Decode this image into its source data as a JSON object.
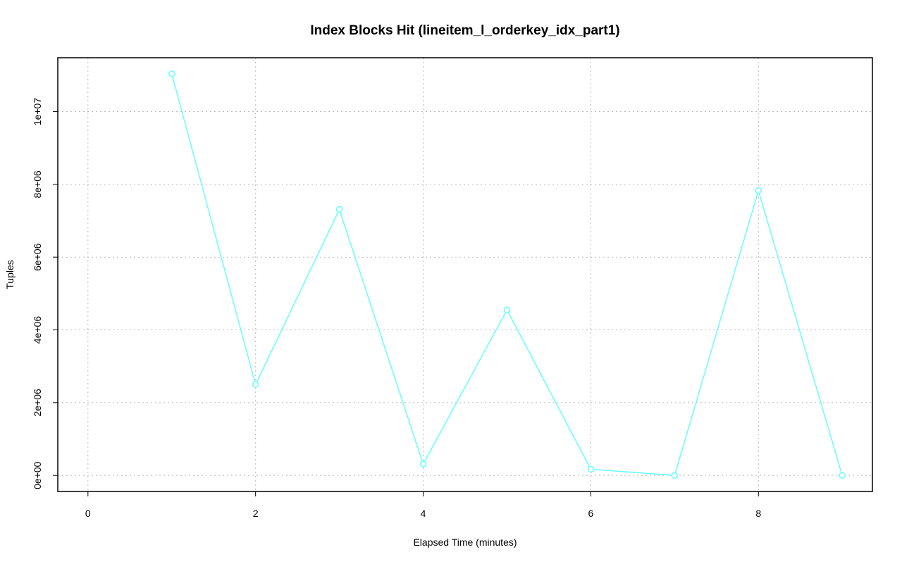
{
  "chart_data": {
    "type": "line",
    "title": "Index Blocks Hit (lineitem_l_orderkey_idx_part1)",
    "x_label": "Elapsed Time (minutes)",
    "y_label": "Tuples",
    "x": [
      1,
      2,
      3,
      4,
      5,
      6,
      7,
      8,
      9
    ],
    "values": [
      11040000,
      2500000,
      7310000,
      310000,
      4550000,
      170000,
      0,
      7830000,
      0
    ],
    "color": "#66ffff",
    "xlim": [
      -0.36,
      9.36
    ],
    "xticks": [
      0,
      2,
      4,
      6,
      8
    ],
    "ylim": [
      -441600,
      11481600
    ],
    "yticks": [
      {
        "value": 0,
        "label": "0e+00"
      },
      {
        "value": 2000000,
        "label": "2e+06"
      },
      {
        "value": 4000000,
        "label": "4e+06"
      },
      {
        "value": 6000000,
        "label": "6e+06"
      },
      {
        "value": 8000000,
        "label": "8e+06"
      },
      {
        "value": 10000000,
        "label": "1e+07"
      }
    ],
    "grid": true
  }
}
